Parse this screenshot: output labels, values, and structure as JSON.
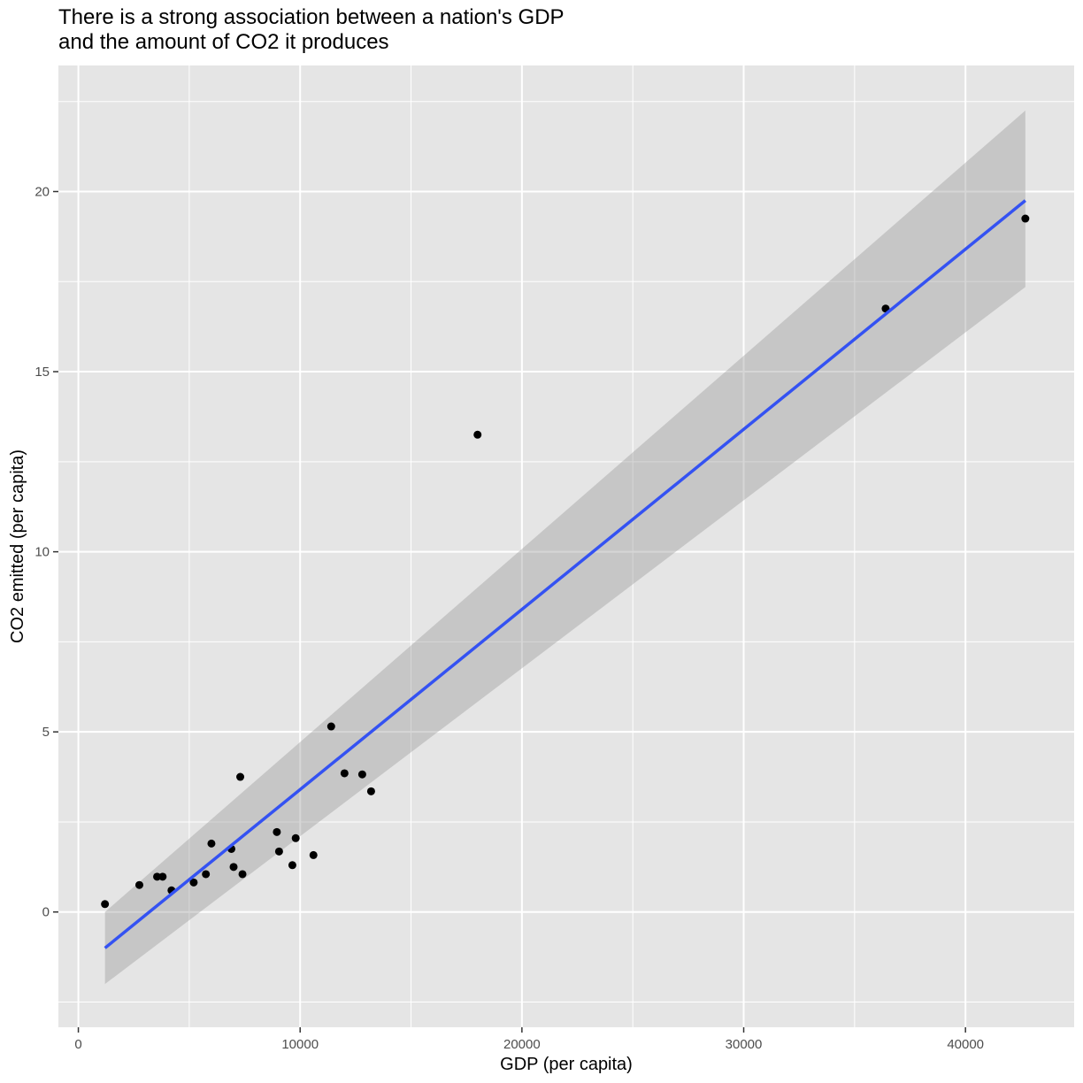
{
  "chart_data": {
    "type": "scatter",
    "title_lines": [
      "There is a strong association between a nation's GDP",
      "and the amount of CO2 it produces"
    ],
    "xlabel": "GDP (per capita)",
    "ylabel": "CO2 emitted (per capita)",
    "xlim": [
      -900,
      44900
    ],
    "ylim": [
      -3.2,
      23.5
    ],
    "x_ticks": [
      0,
      10000,
      20000,
      30000,
      40000
    ],
    "x_tick_labels": [
      "0",
      "10000",
      "20000",
      "30000",
      "40000"
    ],
    "x_minor_ticks": [
      5000,
      15000,
      25000,
      35000
    ],
    "y_ticks": [
      0,
      5,
      10,
      15,
      20
    ],
    "y_tick_labels": [
      "0",
      "5",
      "10",
      "15",
      "20"
    ],
    "y_minor_ticks": [
      -2.5,
      2.5,
      7.5,
      12.5,
      17.5,
      22.5
    ],
    "grid": true,
    "colors": {
      "panel": "#e5e5e5",
      "grid": "#ffffff",
      "point": "#000000",
      "line": "#3452f2",
      "band": "#999999"
    },
    "points": [
      {
        "x": 1200,
        "y": 0.22
      },
      {
        "x": 2750,
        "y": 0.75
      },
      {
        "x": 3550,
        "y": 0.98
      },
      {
        "x": 3800,
        "y": 0.98
      },
      {
        "x": 4200,
        "y": 0.6
      },
      {
        "x": 5200,
        "y": 0.82
      },
      {
        "x": 5750,
        "y": 1.05
      },
      {
        "x": 6000,
        "y": 1.9
      },
      {
        "x": 6900,
        "y": 1.75
      },
      {
        "x": 7000,
        "y": 1.25
      },
      {
        "x": 7300,
        "y": 3.75
      },
      {
        "x": 7400,
        "y": 1.05
      },
      {
        "x": 8950,
        "y": 2.22
      },
      {
        "x": 9050,
        "y": 1.68
      },
      {
        "x": 9650,
        "y": 1.3
      },
      {
        "x": 9800,
        "y": 2.05
      },
      {
        "x": 10600,
        "y": 1.58
      },
      {
        "x": 11400,
        "y": 5.15
      },
      {
        "x": 12000,
        "y": 3.85
      },
      {
        "x": 12800,
        "y": 3.82
      },
      {
        "x": 13200,
        "y": 3.35
      },
      {
        "x": 18000,
        "y": 13.25
      },
      {
        "x": 36400,
        "y": 16.75
      },
      {
        "x": 42700,
        "y": 19.25
      }
    ],
    "fit_line": {
      "x": [
        1200,
        42700
      ],
      "y": [
        -1.0,
        19.75
      ]
    },
    "confidence_band": {
      "x": [
        1200,
        42700
      ],
      "upper": [
        0.0,
        22.25
      ],
      "lower": [
        -2.0,
        17.35
      ]
    }
  }
}
